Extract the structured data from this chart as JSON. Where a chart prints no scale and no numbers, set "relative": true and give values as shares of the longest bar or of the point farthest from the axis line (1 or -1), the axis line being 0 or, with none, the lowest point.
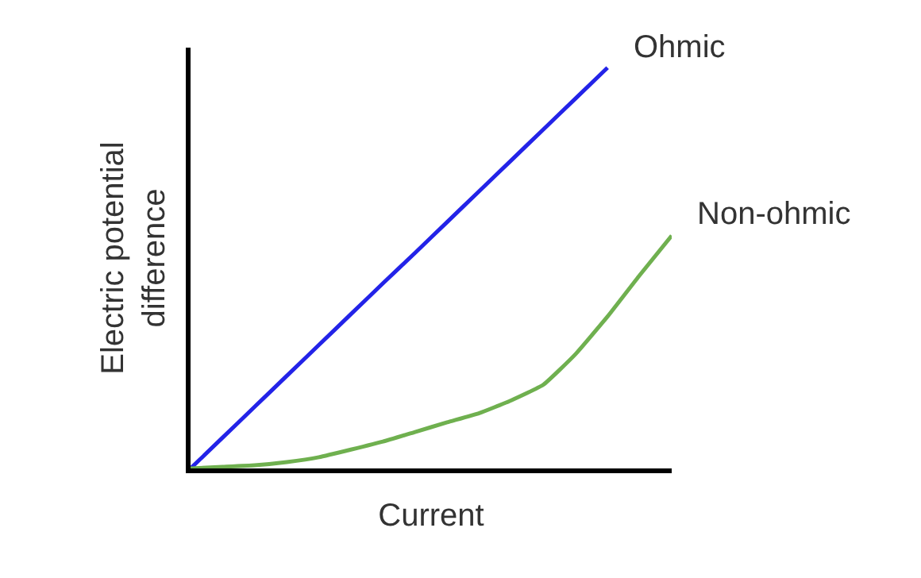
{
  "chart_data": {
    "type": "line",
    "relative": true,
    "legend": false,
    "xlabel": "Current",
    "ylabel": "Electric potential\ndifference",
    "categories": [
      null,
      null,
      null,
      null,
      null,
      null,
      null,
      null,
      null,
      null,
      null,
      null,
      null,
      null,
      null,
      null
    ],
    "series": [
      {
        "name": "Ohmic",
        "color": "#2323e8",
        "values": [
          0,
          0.077,
          0.154,
          0.231,
          0.308,
          0.385,
          0.462,
          0.538,
          0.615,
          0.692,
          0.769,
          0.846,
          0.923,
          1,
          null,
          null
        ]
      },
      {
        "name": "Non-ohmic",
        "color": "#6fb04f",
        "values": [
          0,
          0.004,
          0.008,
          0.016,
          0.028,
          0.047,
          0.067,
          0.091,
          0.115,
          0.138,
          0.17,
          0.209,
          0.285,
          0.379,
          0.482,
          0.581
        ]
      }
    ]
  }
}
